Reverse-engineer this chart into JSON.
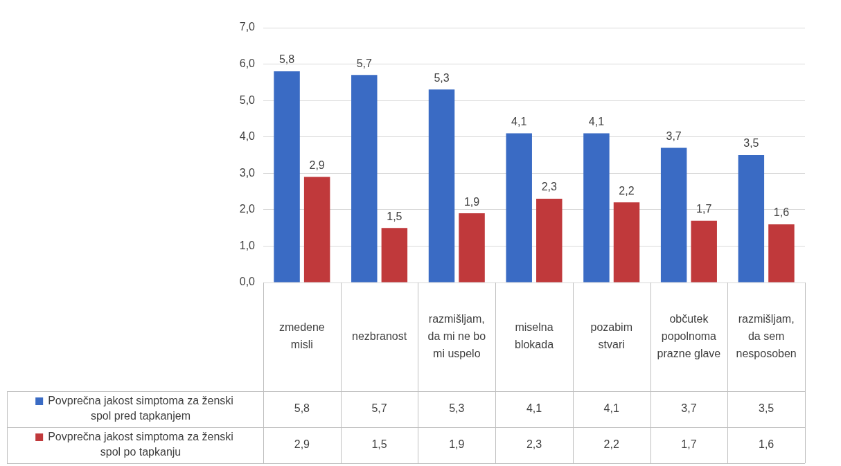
{
  "chart_data": {
    "type": "bar",
    "categories": [
      "zmedene misli",
      "nezbranost",
      "razmišljam, da mi ne bo mi uspelo",
      "miselna blokada",
      "pozabim stvari",
      "občutek popolnoma prazne glave",
      "razmišljam, da sem nesposoben"
    ],
    "series": [
      {
        "name": "Povprečna jakost simptoma za ženski spol pred tapkanjem",
        "color": "#3a6bc4",
        "values": [
          5.8,
          5.7,
          5.3,
          4.1,
          4.1,
          3.7,
          3.5
        ],
        "value_labels": [
          "5,8",
          "5,7",
          "5,3",
          "4,1",
          "4,1",
          "3,7",
          "3,5"
        ]
      },
      {
        "name": "Povprečna jakost simptoma za ženski spol po tapkanju",
        "color": "#c0393b",
        "values": [
          2.9,
          1.5,
          1.9,
          2.3,
          2.2,
          1.7,
          1.6
        ],
        "value_labels": [
          "2,9",
          "1,5",
          "1,9",
          "2,3",
          "2,2",
          "1,7",
          "1,6"
        ]
      }
    ],
    "ylim": [
      0,
      7
    ],
    "yticks": [
      {
        "value": 0,
        "label": "0,0"
      },
      {
        "value": 1,
        "label": "1,0"
      },
      {
        "value": 2,
        "label": "2,0"
      },
      {
        "value": 3,
        "label": "3,0"
      },
      {
        "value": 4,
        "label": "4,0"
      },
      {
        "value": 5,
        "label": "5,0"
      },
      {
        "value": 6,
        "label": "6,0"
      },
      {
        "value": 7,
        "label": "7,0"
      }
    ],
    "grid": "y",
    "legend": "bottom"
  }
}
